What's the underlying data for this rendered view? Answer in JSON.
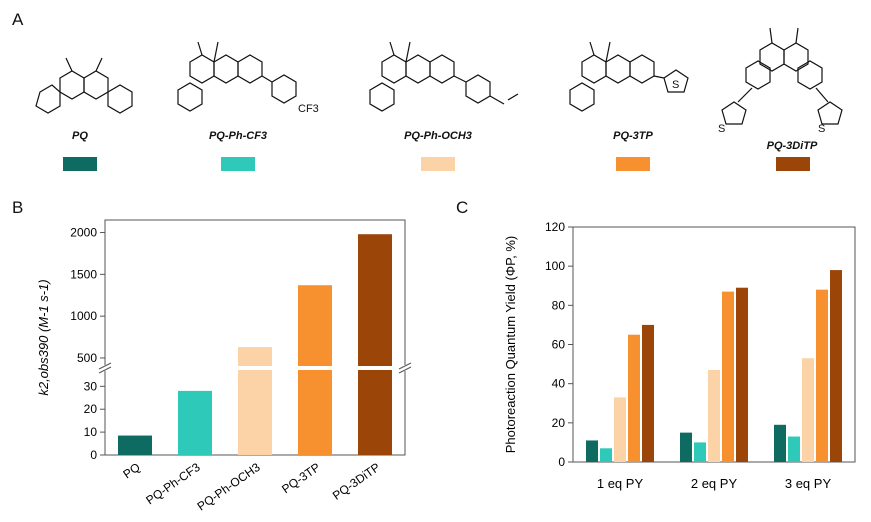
{
  "panels": {
    "a": "A",
    "b": "B",
    "c": "C"
  },
  "molecules": [
    {
      "name": "PQ",
      "color": "#0d6b61"
    },
    {
      "name": "PQ-Ph-CF3",
      "color": "#2ec9b8"
    },
    {
      "name": "PQ-Ph-OCH3",
      "color": "#fbd3a6"
    },
    {
      "name": "PQ-3TP",
      "color": "#f7902e"
    },
    {
      "name": "PQ-3DiTP",
      "color": "#9b4508"
    }
  ],
  "structure_labels": {
    "cf3": "CF3",
    "s": "S"
  },
  "chart_data": [
    {
      "type": "bar",
      "panel": "B",
      "categories": [
        "PQ",
        "PQ-Ph-CF3",
        "PQ-Ph-OCH3",
        "PQ-3TP",
        "PQ-3DiTP"
      ],
      "values": [
        8.5,
        28,
        630,
        1370,
        1980
      ],
      "ylabel": "k2,obs390 (M-1 s-1)",
      "broken_axis": true,
      "lower_ylim": [
        0,
        38
      ],
      "lower_ticks": [
        0,
        10,
        20,
        30
      ],
      "upper_ylim": [
        380,
        2150
      ],
      "upper_ticks": [
        500,
        1000,
        1500,
        2000
      ],
      "colors": [
        "#0d6b61",
        "#2ec9b8",
        "#fbd3a6",
        "#f7902e",
        "#9b4508"
      ]
    },
    {
      "type": "bar",
      "panel": "C",
      "categories": [
        "1 eq PY",
        "2 eq PY",
        "3 eq PY"
      ],
      "series": [
        {
          "values": [
            11,
            15,
            19
          ]
        },
        {
          "values": [
            7,
            10,
            13
          ]
        },
        {
          "values": [
            33,
            47,
            53
          ]
        },
        {
          "values": [
            65,
            87,
            88
          ]
        },
        {
          "values": [
            70,
            89,
            98
          ]
        }
      ],
      "ylabel": "Photoreaction Quantum Yield (ΦP, %)",
      "ylim": [
        0,
        120
      ],
      "yticks": [
        0,
        20,
        40,
        60,
        80,
        100,
        120
      ],
      "colors": [
        "#0d6b61",
        "#2ec9b8",
        "#fbd3a6",
        "#f7902e",
        "#9b4508"
      ]
    }
  ]
}
